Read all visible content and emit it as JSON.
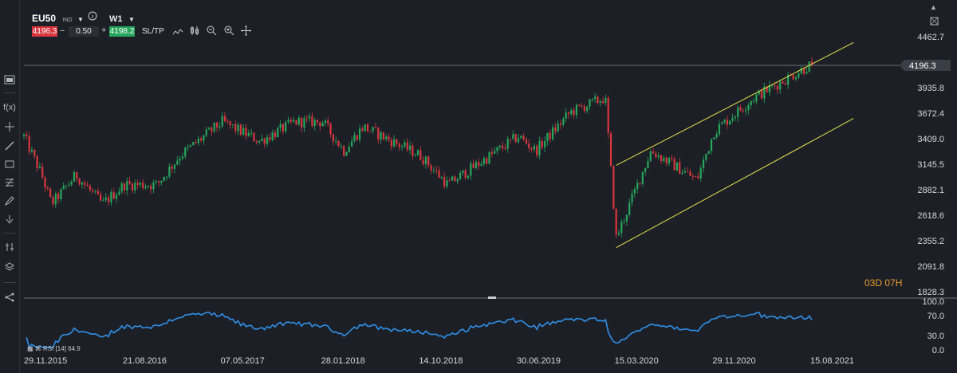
{
  "toolbar": {
    "symbol": "EU50",
    "symbol_type": "IND",
    "timeframe": "W1",
    "sell_price": "4196.3",
    "minus": "−",
    "volume": "0.50",
    "plus": "+",
    "buy_price": "4198.2",
    "sltp": "SL/TP",
    "window_up_icon": "▲"
  },
  "sidebar": {
    "items": [
      "chart-type-icon",
      "function-icon",
      "crosshair-icon",
      "trendline-icon",
      "rectangle-icon",
      "fibonacci-icon",
      "pencil-icon",
      "arrow-down-icon",
      "indicators-icon",
      "layers-icon",
      "share-icon"
    ],
    "f_label": "f(x)"
  },
  "price_axis": {
    "labels": [
      "4462.7",
      "4196.3",
      "3935.8",
      "3672.4",
      "3409.0",
      "3145.5",
      "2882.1",
      "2618.6",
      "2355.2",
      "2091.8",
      "1828.3"
    ],
    "current": "4196.3"
  },
  "countdown": "03D 07H",
  "rsi": {
    "label": "RSI [14] 64.9",
    "axis": [
      "100.0",
      "70.0",
      "30.0",
      "0.0"
    ]
  },
  "date_axis": [
    "29.11.2015",
    "21.08.2016",
    "07.05.2017",
    "28.01.2018",
    "14.10.2018",
    "30.06.2019",
    "15.03.2020",
    "29.11.2020",
    "15.08.2021"
  ],
  "colors": {
    "background": "#1c2026",
    "bull": "#26a65b",
    "bear": "#d9363e",
    "channel": "#e5e04a",
    "rsi_line": "#2f8fe8",
    "countdown": "#e89a2c"
  },
  "chart_data": {
    "type": "candlestick",
    "title": "",
    "symbol": "EU50",
    "timeframe": "W1",
    "ylim": [
      1828.3,
      4462.7
    ],
    "x_start": "29.11.2015",
    "x_end": "15.08.2021",
    "last_price": 4196.3,
    "approx_close_path": [
      {
        "date": "29.11.2015",
        "close": 3450
      },
      {
        "date": "15.01.2016",
        "close": 3050
      },
      {
        "date": "10.02.2016",
        "close": 2750
      },
      {
        "date": "15.04.2016",
        "close": 3050
      },
      {
        "date": "24.06.2016",
        "close": 2750
      },
      {
        "date": "21.08.2016",
        "close": 2950
      },
      {
        "date": "15.11.2016",
        "close": 2950
      },
      {
        "date": "15.01.2017",
        "close": 3250
      },
      {
        "date": "07.05.2017",
        "close": 3600
      },
      {
        "date": "15.08.2017",
        "close": 3400
      },
      {
        "date": "15.11.2017",
        "close": 3600
      },
      {
        "date": "28.01.2018",
        "close": 3600
      },
      {
        "date": "25.03.2018",
        "close": 3300
      },
      {
        "date": "15.05.2018",
        "close": 3550
      },
      {
        "date": "14.10.2018",
        "close": 3250
      },
      {
        "date": "25.12.2018",
        "close": 2950
      },
      {
        "date": "30.06.2019",
        "close": 3450
      },
      {
        "date": "15.08.2019",
        "close": 3300
      },
      {
        "date": "15.11.2019",
        "close": 3700
      },
      {
        "date": "15.02.2020",
        "close": 3850
      },
      {
        "date": "15.03.2020",
        "close": 2400
      },
      {
        "date": "15.06.2020",
        "close": 3300
      },
      {
        "date": "15.10.2020",
        "close": 3000
      },
      {
        "date": "29.11.2020",
        "close": 3500
      },
      {
        "date": "15.03.2021",
        "close": 3850
      },
      {
        "date": "15.08.2021",
        "close": 4196.3
      }
    ],
    "channel": {
      "upper": [
        {
          "date": "15.03.2020",
          "price": 3150
        },
        {
          "date": "15.08.2021",
          "price": 4196
        }
      ],
      "lower": [
        {
          "date": "15.03.2020",
          "price": 2300
        },
        {
          "date": "15.08.2021",
          "price": 3400
        }
      ]
    },
    "rsi": {
      "period": 14,
      "last": 64.9,
      "ylim": [
        0,
        100
      ]
    }
  }
}
